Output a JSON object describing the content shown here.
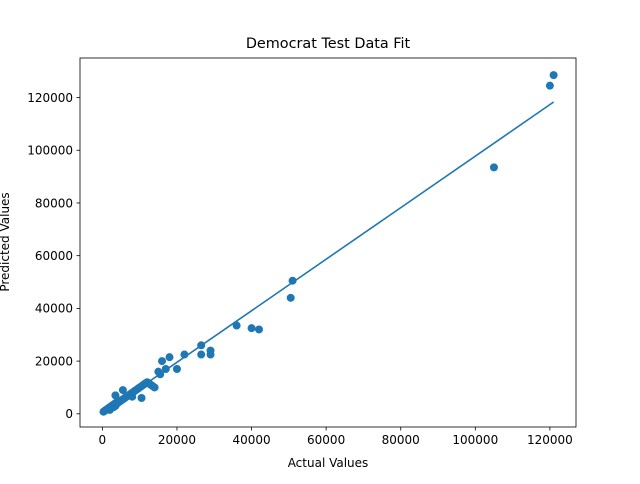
{
  "chart_data": {
    "type": "scatter",
    "title": "Democrat Test Data Fit",
    "xlabel": "Actual Values",
    "ylabel": "Predicted Values",
    "xlim": [
      -6000,
      127000
    ],
    "ylim": [
      -5000,
      135000
    ],
    "xticks": [
      0,
      20000,
      40000,
      60000,
      80000,
      100000,
      120000
    ],
    "xtick_labels": [
      "0",
      "20000",
      "40000",
      "60000",
      "80000",
      "100000",
      "120000"
    ],
    "yticks": [
      0,
      20000,
      40000,
      60000,
      80000,
      100000,
      120000
    ],
    "ytick_labels": [
      "0",
      "20000",
      "40000",
      "60000",
      "80000",
      "100000",
      "120000"
    ],
    "grid": false,
    "legend": false,
    "color": "#1f77b4",
    "series": [
      {
        "type": "scatter",
        "x": [
          300,
          600,
          900,
          1200,
          1500,
          1800,
          2100,
          2400,
          2700,
          3000,
          3300,
          3600,
          3900,
          4200,
          4500,
          2000,
          3000,
          3500,
          4000,
          4500,
          5000,
          5500,
          6000,
          6500,
          7000,
          7500,
          8000,
          8500,
          9000,
          9500,
          10000,
          10500,
          11000,
          11500,
          12000,
          12500,
          13000,
          13500,
          14000,
          3500,
          5500,
          8000,
          10500,
          15000,
          16000,
          15500,
          17000,
          18000,
          20000,
          22000,
          26500,
          26500,
          29000,
          29000,
          36000,
          40000,
          42000,
          50500,
          51000,
          105000,
          120000,
          121000
        ],
        "y": [
          800,
          1100,
          1400,
          1700,
          2000,
          2300,
          2600,
          2900,
          3200,
          3500,
          3800,
          4100,
          4400,
          4700,
          5000,
          1500,
          2500,
          3000,
          4000,
          4500,
          5000,
          5500,
          6000,
          6500,
          7000,
          7500,
          8000,
          8500,
          9000,
          9500,
          10000,
          10500,
          11000,
          11500,
          12000,
          11500,
          11000,
          10500,
          10000,
          7000,
          9000,
          6500,
          6000,
          16000,
          20000,
          15000,
          17000,
          21500,
          17000,
          22500,
          26000,
          22500,
          24000,
          22500,
          33500,
          32500,
          32000,
          44000,
          50500,
          93500,
          124500,
          128500
        ]
      },
      {
        "type": "line",
        "x": [
          0,
          121000
        ],
        "y": [
          0,
          118300
        ]
      }
    ]
  }
}
